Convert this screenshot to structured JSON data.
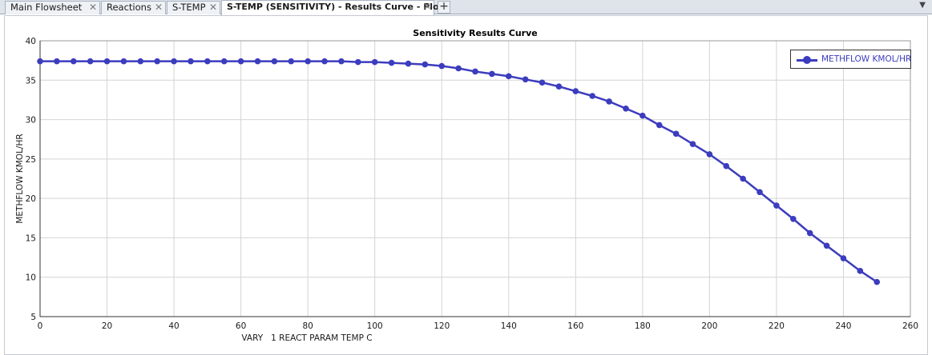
{
  "tabs": [
    {
      "label": "Main Flowsheet",
      "active": false
    },
    {
      "label": "Reactions",
      "active": false
    },
    {
      "label": "S-TEMP",
      "active": false
    },
    {
      "label": "S-TEMP (SENSITIVITY) - Results Curve - Plot",
      "active": true
    }
  ],
  "colors": {
    "series": "#3c3cbe",
    "grid": "#d4d4d4"
  },
  "chart_data": {
    "type": "line",
    "title": "Sensitivity Results Curve",
    "xlabel": "VARY   1 REACT PARAM TEMP C",
    "ylabel": "METHFLOW KMOL/HR",
    "xlim": [
      0,
      260
    ],
    "ylim": [
      5,
      40
    ],
    "xticks": [
      0,
      20,
      40,
      60,
      80,
      100,
      120,
      140,
      160,
      180,
      200,
      220,
      240,
      260
    ],
    "yticks": [
      5,
      10,
      15,
      20,
      25,
      30,
      35,
      40
    ],
    "grid": true,
    "legend_position": "top-right",
    "series": [
      {
        "name": "METHFLOW KMOL/HR",
        "x": [
          0,
          5,
          10,
          15,
          20,
          25,
          30,
          35,
          40,
          45,
          50,
          55,
          60,
          65,
          70,
          75,
          80,
          85,
          90,
          95,
          100,
          105,
          110,
          115,
          120,
          125,
          130,
          135,
          140,
          145,
          150,
          155,
          160,
          165,
          170,
          175,
          180,
          185,
          190,
          195,
          200,
          205,
          210,
          215,
          220,
          225,
          230,
          235,
          240,
          245,
          250
        ],
        "y": [
          37.4,
          37.4,
          37.4,
          37.4,
          37.4,
          37.4,
          37.4,
          37.4,
          37.4,
          37.4,
          37.4,
          37.4,
          37.4,
          37.4,
          37.4,
          37.4,
          37.4,
          37.4,
          37.4,
          37.3,
          37.3,
          37.2,
          37.1,
          37.0,
          36.8,
          36.5,
          36.1,
          35.8,
          35.5,
          35.1,
          34.7,
          34.2,
          33.6,
          33.0,
          32.3,
          31.4,
          30.5,
          29.3,
          28.2,
          26.9,
          25.6,
          24.1,
          22.5,
          20.8,
          19.1,
          17.4,
          15.6,
          14.0,
          12.4,
          10.8,
          9.4
        ]
      }
    ]
  }
}
